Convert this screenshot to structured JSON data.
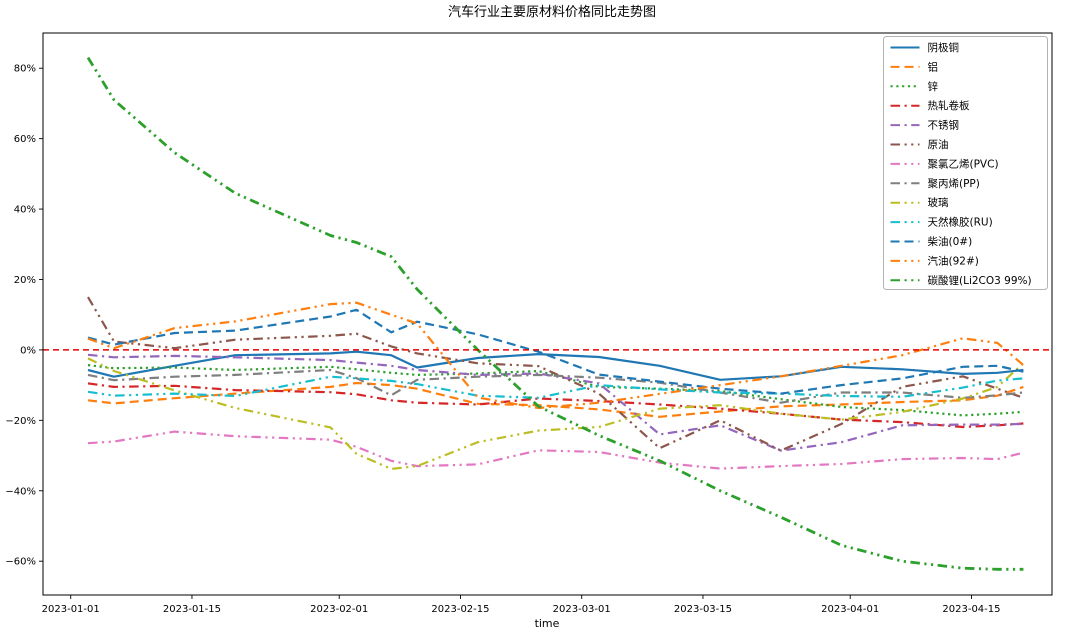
{
  "page": {
    "background": "#ffffff"
  },
  "chart_data": {
    "type": "line",
    "title": "汽车行业主要原材料价格同比走势图",
    "xlabel": "time",
    "ylabel": "",
    "grid": false,
    "legend_position": "upper right",
    "x_tick_labels": [
      "2023-01-01",
      "2023-01-15",
      "2023-02-01",
      "2023-02-15",
      "2023-03-01",
      "2023-03-15",
      "2023-04-01",
      "2023-04-15"
    ],
    "x_tick_days": [
      0,
      14,
      31,
      45,
      59,
      73,
      90,
      104
    ],
    "y_tick_labels": [
      "80%",
      "60%",
      "40%",
      "20%",
      "0%",
      "−20%",
      "−40%",
      "−60%"
    ],
    "y_tick_values": [
      80,
      60,
      40,
      20,
      0,
      -20,
      -40,
      -60
    ],
    "xlim_days": [
      -3.2,
      113.3
    ],
    "ylim": [
      -69.6,
      90
    ],
    "zero_line": {
      "value": 0,
      "color": "#e50000",
      "style": "dashed"
    },
    "x_dates": [
      "2023-01-03",
      "2023-01-06",
      "2023-01-13",
      "2023-01-20",
      "2023-01-31",
      "2023-02-03",
      "2023-02-07",
      "2023-02-10",
      "2023-02-17",
      "2023-02-24",
      "2023-03-03",
      "2023-03-10",
      "2023-03-17",
      "2023-03-24",
      "2023-03-31",
      "2023-04-07",
      "2023-04-14",
      "2023-04-18",
      "2023-04-21"
    ],
    "x_days": [
      2,
      5,
      12,
      19,
      30,
      33,
      37,
      40,
      47,
      54,
      61,
      68,
      75,
      82,
      89,
      96,
      103,
      107,
      110
    ],
    "unit": "percent_yoy",
    "series": [
      {
        "name": "阴极铜",
        "color": "#1f77b4",
        "dash": "solid",
        "width": 2.2,
        "values": [
          -5.7,
          -7.6,
          -4.5,
          -1.5,
          -1.0,
          -0.5,
          -1.5,
          -5.0,
          -2.3,
          -1.2,
          -2.0,
          -4.5,
          -8.5,
          -7.5,
          -4.8,
          -5.5,
          -6.8,
          -6.5,
          -5.7
        ]
      },
      {
        "name": "铝",
        "color": "#ff7f0e",
        "dash": "dashed",
        "width": 2.2,
        "values": [
          -14.3,
          -15.2,
          -13.7,
          -12.4,
          -10.5,
          -9.4,
          -10.0,
          -11.0,
          -15.3,
          -15.7,
          -16.9,
          -19.0,
          -17.5,
          -16.0,
          -15.5,
          -14.8,
          -14.3,
          -13.0,
          -10.5
        ]
      },
      {
        "name": "锌",
        "color": "#2ca02c",
        "dash": "dotted",
        "width": 2.2,
        "values": [
          -4.3,
          -5.2,
          -5.0,
          -5.7,
          -4.8,
          -5.5,
          -6.5,
          -7.1,
          -6.7,
          -6.0,
          -10.5,
          -11.0,
          -11.7,
          -14.0,
          -16.2,
          -17.1,
          -18.6,
          -18.1,
          -17.6
        ]
      },
      {
        "name": "热轧卷板",
        "color": "#d62728",
        "dash": "dashdot",
        "width": 2.2,
        "values": [
          -9.5,
          -10.5,
          -10.2,
          -11.4,
          -12.0,
          -12.6,
          -14.3,
          -15.0,
          -15.5,
          -13.8,
          -14.5,
          -15.5,
          -16.7,
          -18.1,
          -19.8,
          -20.5,
          -21.9,
          -21.4,
          -20.9
        ]
      },
      {
        "name": "不锈钢",
        "color": "#9467bd",
        "dash": "dashdot",
        "width": 2.2,
        "values": [
          -1.4,
          -2.1,
          -1.7,
          -2.1,
          -2.9,
          -3.6,
          -4.5,
          -5.7,
          -7.1,
          -6.7,
          -9.5,
          -24.0,
          -21.4,
          -28.6,
          -26.2,
          -21.4,
          -21.2,
          -21.2,
          -21.0
        ]
      },
      {
        "name": "原油",
        "color": "#8c564b",
        "dash": "dashdotdot",
        "width": 2.2,
        "values": [
          15.0,
          2.4,
          0.5,
          2.9,
          4.0,
          4.6,
          1.0,
          -1.0,
          -3.8,
          -4.6,
          -12.4,
          -27.9,
          -20.0,
          -28.6,
          -21.0,
          -10.5,
          -7.5,
          -11.0,
          -13.6
        ]
      },
      {
        "name": "聚氯乙烯(PVC)",
        "color": "#e377c2",
        "dash": "dashdotdot",
        "width": 2.2,
        "values": [
          -26.5,
          -26.0,
          -23.2,
          -24.5,
          -25.5,
          -27.5,
          -31.5,
          -33.0,
          -32.5,
          -28.5,
          -29.0,
          -32.0,
          -33.7,
          -33.0,
          -32.4,
          -31.0,
          -30.7,
          -31.0,
          -29.2
        ]
      },
      {
        "name": "聚丙烯(PP)",
        "color": "#7f7f7f",
        "dash": "dashdot",
        "width": 2.2,
        "values": [
          -7.1,
          -8.6,
          -7.6,
          -7.1,
          -5.7,
          -8.0,
          -12.9,
          -8.5,
          -7.6,
          -7.1,
          -7.9,
          -9.3,
          -12.1,
          -15.0,
          -12.1,
          -12.1,
          -13.6,
          -12.9,
          -12.1
        ]
      },
      {
        "name": "玻璃",
        "color": "#bcbd22",
        "dash": "dashdotdot",
        "width": 2.2,
        "values": [
          -2.4,
          -6.0,
          -11.5,
          -16.5,
          -22.0,
          -29.5,
          -33.8,
          -33.0,
          -26.2,
          -22.9,
          -21.9,
          -16.7,
          -15.7,
          -18.1,
          -19.8,
          -17.6,
          -13.8,
          -10.5,
          -3.8
        ]
      },
      {
        "name": "天然橡胶(RU)",
        "color": "#17becf",
        "dash": "dashdotdot",
        "width": 2.2,
        "values": [
          -11.9,
          -13.0,
          -12.4,
          -13.1,
          -7.6,
          -8.1,
          -8.8,
          -9.7,
          -13.0,
          -13.6,
          -10.0,
          -11.2,
          -12.1,
          -12.4,
          -13.1,
          -13.3,
          -10.7,
          -8.7,
          -8.1
        ]
      },
      {
        "name": "柴油(0#)",
        "color": "#1f77b4",
        "dash": "dashed",
        "width": 2.2,
        "values": [
          3.5,
          1.5,
          4.8,
          5.5,
          9.5,
          11.4,
          5.0,
          8.0,
          4.4,
          -0.5,
          -7.0,
          -9.0,
          -11.0,
          -12.4,
          -10.0,
          -8.1,
          -4.8,
          -4.5,
          -6.2
        ]
      },
      {
        "name": "汽油(92#)",
        "color": "#ff7f0e",
        "dash": "dashdotdot",
        "width": 2.2,
        "values": [
          3.2,
          0.5,
          6.2,
          8.1,
          13.0,
          13.4,
          10.0,
          7.5,
          -13.5,
          -16.5,
          -15.0,
          -12.5,
          -10.0,
          -7.5,
          -4.5,
          -1.5,
          3.3,
          2.0,
          -4.3
        ]
      },
      {
        "name": "碳酸锂(Li2CO3 99%)",
        "color": "#2ca02c",
        "dash": "dashdotdot",
        "width": 2.8,
        "values": [
          83.0,
          71.0,
          56.0,
          44.5,
          32.5,
          30.5,
          26.5,
          17.2,
          0.0,
          -16.0,
          -24.3,
          -31.5,
          -40.0,
          -47.5,
          -55.5,
          -60.0,
          -62.0,
          -62.3,
          -62.3
        ]
      }
    ],
    "legend_box": {
      "border_color": "#b3b3b3",
      "background": "#ffffff"
    },
    "axis_color": "#000000"
  }
}
